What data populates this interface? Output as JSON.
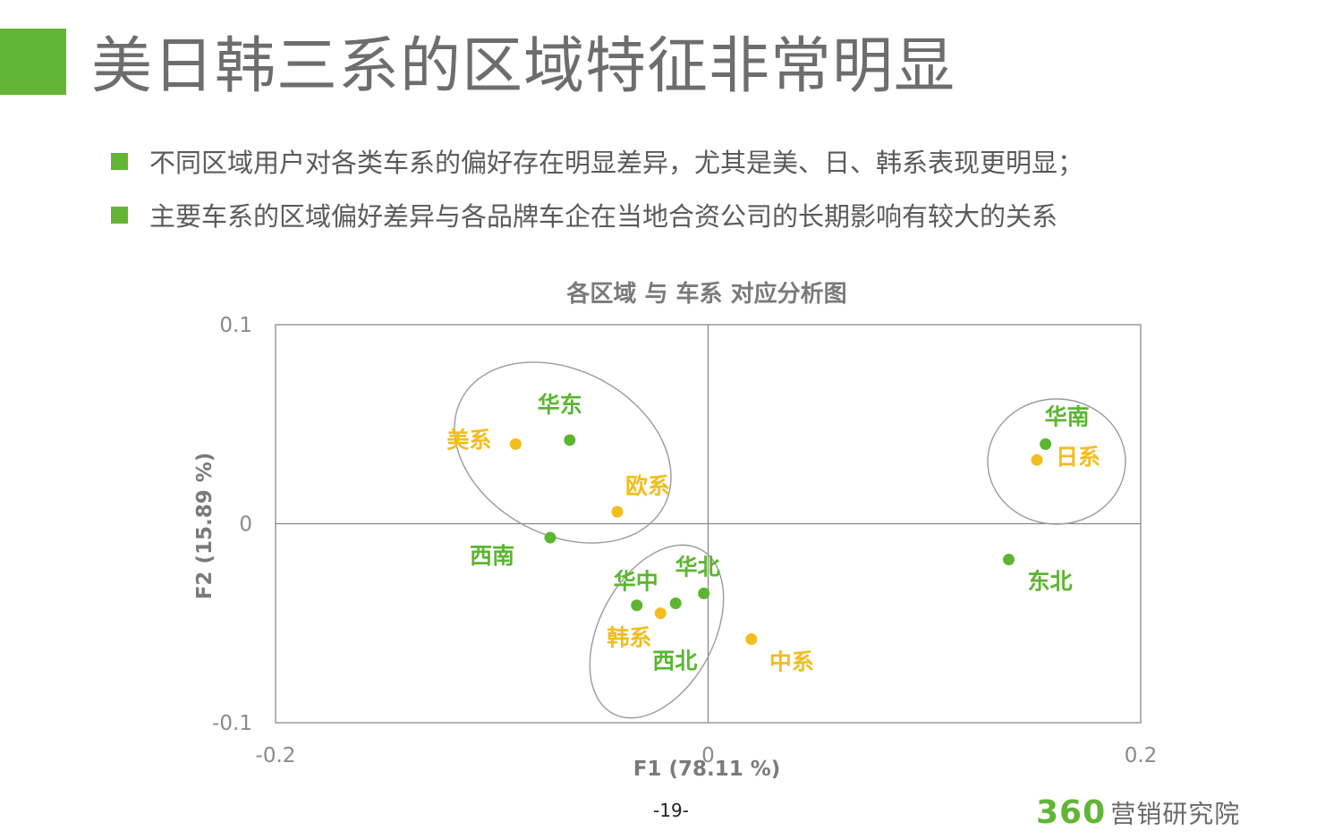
{
  "colors": {
    "accent": "#62b535",
    "region_green": "#5cb531",
    "series_yellow": "#f2bd1d",
    "axis_gray": "#888888",
    "ellipse_gray": "#9a9a9a"
  },
  "header": {
    "title": "美日韩三系的区域特征非常明显"
  },
  "bullets": [
    "不同区域用户对各类车系的偏好存在明显差异，尤其是美、日、韩系表现更明显；",
    "主要车系的区域偏好差异与各品牌车企在当地合资公司的长期影响有较大的关系"
  ],
  "chart_data": {
    "type": "scatter",
    "title": "各区域 与 车系 对应分析图",
    "xlabel": "F1 (78.11 %)",
    "ylabel": "F2 (15.89 %)",
    "xlim": [
      -0.2,
      0.2
    ],
    "ylim": [
      -0.1,
      0.1
    ],
    "x_ticks": [
      "-0.2",
      "0",
      "0.2"
    ],
    "y_ticks": [
      "0.1",
      "0",
      "-0.1"
    ],
    "grid": false,
    "legend": "none",
    "series": [
      {
        "group": "region",
        "color": "#5cb531",
        "points": [
          {
            "label": "华东",
            "x": -0.064,
            "y": 0.042
          },
          {
            "label": "西南",
            "x": -0.073,
            "y": -0.007
          },
          {
            "label": "华中",
            "x": -0.033,
            "y": -0.041
          },
          {
            "label": "西北",
            "x": -0.015,
            "y": -0.04
          },
          {
            "label": "华北",
            "x": -0.002,
            "y": -0.035
          },
          {
            "label": "华南",
            "x": 0.156,
            "y": 0.04
          },
          {
            "label": "东北",
            "x": 0.139,
            "y": -0.018
          }
        ]
      },
      {
        "group": "car_series",
        "color": "#f2bd1d",
        "points": [
          {
            "label": "美系",
            "x": -0.089,
            "y": 0.04
          },
          {
            "label": "欧系",
            "x": -0.042,
            "y": 0.006
          },
          {
            "label": "韩系",
            "x": -0.022,
            "y": -0.045
          },
          {
            "label": "中系",
            "x": 0.02,
            "y": -0.058
          },
          {
            "label": "日系",
            "x": 0.152,
            "y": 0.032
          }
        ]
      }
    ],
    "groupings": [
      {
        "members": [
          "华东",
          "美系",
          "欧系",
          "西南"
        ]
      },
      {
        "members": [
          "华中",
          "华北",
          "韩系",
          "西北"
        ]
      },
      {
        "members": [
          "华南",
          "日系"
        ]
      }
    ]
  },
  "footer": {
    "page_number": "-19-",
    "logo_number": "360",
    "logo_text": "营销研究院"
  }
}
